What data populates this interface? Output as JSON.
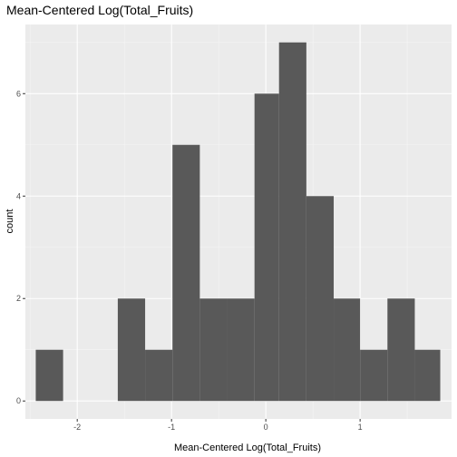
{
  "chart_data": {
    "type": "histogram",
    "title": "Mean-Centered Log(Total_Fruits)",
    "xlabel": "Mean-Centered Log(Total_Fruits)",
    "ylabel": "count",
    "xlim": [
      -2.55,
      1.97
    ],
    "ylim": [
      -0.35,
      7.35
    ],
    "xticks": [
      -2,
      -1,
      0,
      1
    ],
    "yticks": [
      0,
      2,
      4,
      6
    ],
    "xtick_labels": [
      "-2",
      "-1",
      "0",
      "1"
    ],
    "ytick_labels": [
      "0",
      "2",
      "4",
      "6"
    ],
    "bin_edges": [
      -2.44,
      -2.15,
      -1.86,
      -1.57,
      -1.28,
      -0.99,
      -0.7,
      -0.41,
      -0.12,
      0.14,
      0.43,
      0.72,
      1.0,
      1.29,
      1.58,
      1.85
    ],
    "counts": [
      1,
      0,
      0,
      2,
      1,
      5,
      2,
      2,
      6,
      7,
      4,
      2,
      1,
      2,
      1
    ],
    "grid": true,
    "colors": {
      "bar": "#595959",
      "panel_background": "#ebebeb",
      "grid_major": "#ffffff",
      "grid_minor": "#f5f5f5"
    }
  }
}
